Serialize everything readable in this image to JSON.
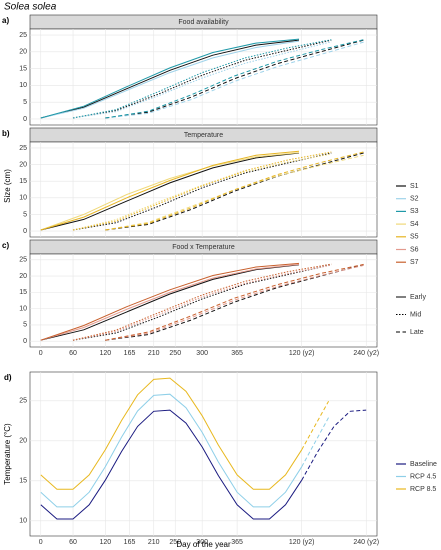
{
  "chart_data": [
    {
      "type": "line",
      "title": "Solea solea",
      "ylabel": "Size (cm)",
      "xlim": [
        -20,
        625
      ],
      "xticks": [
        0,
        60,
        120,
        165,
        210,
        250,
        300,
        365,
        {
          "value": 485,
          "label": "120 (y2)"
        },
        {
          "value": 605,
          "label": "240 (y2)"
        }
      ],
      "ylim": [
        -1.8,
        26.8
      ],
      "yticks": [
        0,
        5,
        10,
        15,
        20,
        25
      ],
      "grid": true,
      "scenarios": [
        {
          "name": "S1",
          "color": "#111111"
        },
        {
          "name": "S2",
          "color": "#9fd3ea"
        },
        {
          "name": "S3",
          "color": "#1f99a8"
        },
        {
          "name": "S4",
          "color": "#f0d97a"
        },
        {
          "name": "S5",
          "color": "#e6b422"
        },
        {
          "name": "S6",
          "color": "#e39a8e"
        },
        {
          "name": "S7",
          "color": "#c8602d"
        }
      ],
      "timings": [
        {
          "name": "Early",
          "dash": "none"
        },
        {
          "name": "Mid",
          "dash": "1.5,1.5"
        },
        {
          "name": "Late",
          "dash": "4,2.5"
        }
      ],
      "panels": [
        {
          "label": "a)",
          "title": "Food availability",
          "series": [
            {
              "scenario": "S1",
              "timing": "Early",
              "x": [
                0,
                80,
                160,
                240,
                320,
                400,
                480
              ],
              "values": [
                0.3,
                3.5,
                9,
                14.5,
                19,
                22,
                23.5
              ]
            },
            {
              "scenario": "S2",
              "timing": "Early",
              "x": [
                0,
                80,
                160,
                240,
                320,
                400,
                480
              ],
              "values": [
                0.3,
                3.2,
                8.5,
                13.8,
                18.2,
                21.3,
                23.2
              ]
            },
            {
              "scenario": "S3",
              "timing": "Early",
              "x": [
                0,
                80,
                160,
                240,
                320,
                400,
                480
              ],
              "values": [
                0.3,
                3.8,
                9.6,
                15.2,
                19.8,
                22.6,
                23.8
              ]
            },
            {
              "scenario": "S1",
              "timing": "Mid",
              "x": [
                60,
                140,
                220,
                300,
                380,
                460,
                540
              ],
              "values": [
                0.3,
                2.5,
                7.5,
                13,
                17.5,
                20.5,
                23.5
              ]
            },
            {
              "scenario": "S2",
              "timing": "Mid",
              "x": [
                60,
                140,
                220,
                300,
                380,
                460,
                540
              ],
              "values": [
                0.3,
                2.2,
                7,
                12.2,
                16.6,
                19.8,
                23
              ]
            },
            {
              "scenario": "S3",
              "timing": "Mid",
              "x": [
                60,
                140,
                220,
                300,
                380,
                460,
                540
              ],
              "values": [
                0.3,
                2.8,
                8.2,
                13.8,
                18.2,
                21.2,
                23.6
              ]
            },
            {
              "scenario": "S1",
              "timing": "Late",
              "x": [
                120,
                200,
                280,
                360,
                440,
                520,
                600
              ],
              "values": [
                0.3,
                2,
                6.5,
                12,
                16.5,
                20,
                23.5
              ]
            },
            {
              "scenario": "S2",
              "timing": "Late",
              "x": [
                120,
                200,
                280,
                360,
                440,
                520,
                600
              ],
              "values": [
                0.3,
                1.7,
                5.8,
                11.2,
                15.6,
                19.2,
                22.9
              ]
            },
            {
              "scenario": "S3",
              "timing": "Late",
              "x": [
                120,
                200,
                280,
                360,
                440,
                520,
                600
              ],
              "values": [
                0.3,
                2.3,
                7.2,
                12.8,
                17.2,
                20.6,
                23.6
              ]
            }
          ]
        },
        {
          "label": "b)",
          "title": "Temperature",
          "series": [
            {
              "scenario": "S1",
              "timing": "Early",
              "x": [
                0,
                80,
                160,
                240,
                320,
                400,
                480
              ],
              "values": [
                0.3,
                3.5,
                9,
                14.5,
                19,
                22,
                23.5
              ]
            },
            {
              "scenario": "S4",
              "timing": "Early",
              "x": [
                0,
                80,
                160,
                240,
                320,
                400,
                480
              ],
              "values": [
                0.3,
                5,
                11,
                15.8,
                19.6,
                22.3,
                23.6
              ]
            },
            {
              "scenario": "S5",
              "timing": "Early",
              "x": [
                0,
                80,
                160,
                240,
                320,
                400,
                480
              ],
              "values": [
                0.3,
                4.2,
                10,
                15.2,
                19.8,
                22.8,
                24
              ]
            },
            {
              "scenario": "S1",
              "timing": "Mid",
              "x": [
                60,
                140,
                220,
                300,
                380,
                460,
                540
              ],
              "values": [
                0.3,
                2.5,
                7.5,
                13,
                17.5,
                20.5,
                23.5
              ]
            },
            {
              "scenario": "S4",
              "timing": "Mid",
              "x": [
                60,
                140,
                220,
                300,
                380,
                460,
                540
              ],
              "values": [
                0.3,
                3.4,
                8.8,
                13.8,
                17.8,
                20.8,
                23.2
              ]
            },
            {
              "scenario": "S5",
              "timing": "Mid",
              "x": [
                60,
                140,
                220,
                300,
                380,
                460,
                540
              ],
              "values": [
                0.3,
                3,
                8.3,
                13.6,
                18.2,
                21.4,
                23.8
              ]
            },
            {
              "scenario": "S1",
              "timing": "Late",
              "x": [
                120,
                200,
                280,
                360,
                440,
                520,
                600
              ],
              "values": [
                0.3,
                2,
                6.5,
                12,
                16.5,
                20,
                23.5
              ]
            },
            {
              "scenario": "S4",
              "timing": "Late",
              "x": [
                120,
                200,
                280,
                360,
                440,
                520,
                600
              ],
              "values": [
                0.3,
                2.6,
                7.4,
                12.4,
                16.6,
                19.8,
                22.8
              ]
            },
            {
              "scenario": "S5",
              "timing": "Late",
              "x": [
                120,
                200,
                280,
                360,
                440,
                520,
                600
              ],
              "values": [
                0.3,
                2.3,
                7,
                12.4,
                17,
                20.6,
                23.8
              ]
            }
          ]
        },
        {
          "label": "c)",
          "title": "Food x Temperature",
          "series": [
            {
              "scenario": "S1",
              "timing": "Early",
              "x": [
                0,
                80,
                160,
                240,
                320,
                400,
                480
              ],
              "values": [
                0.3,
                3.5,
                9,
                14.5,
                19,
                22,
                23.5
              ]
            },
            {
              "scenario": "S6",
              "timing": "Early",
              "x": [
                0,
                80,
                160,
                240,
                320,
                400,
                480
              ],
              "values": [
                0.3,
                4.2,
                9.8,
                15,
                19.4,
                22.2,
                23.6
              ]
            },
            {
              "scenario": "S7",
              "timing": "Early",
              "x": [
                0,
                80,
                160,
                240,
                320,
                400,
                480
              ],
              "values": [
                0.3,
                4.8,
                10.6,
                15.8,
                20.2,
                22.8,
                23.9
              ]
            },
            {
              "scenario": "S1",
              "timing": "Mid",
              "x": [
                60,
                140,
                220,
                300,
                380,
                460,
                540
              ],
              "values": [
                0.3,
                2.5,
                7.5,
                13,
                17.5,
                20.5,
                23.5
              ]
            },
            {
              "scenario": "S6",
              "timing": "Mid",
              "x": [
                60,
                140,
                220,
                300,
                380,
                460,
                540
              ],
              "values": [
                0.3,
                3,
                8.2,
                13.6,
                17.8,
                20.8,
                23.4
              ]
            },
            {
              "scenario": "S7",
              "timing": "Mid",
              "x": [
                60,
                140,
                220,
                300,
                380,
                460,
                540
              ],
              "values": [
                0.3,
                3.4,
                8.8,
                14.2,
                18.4,
                21.4,
                23.7
              ]
            },
            {
              "scenario": "S1",
              "timing": "Late",
              "x": [
                120,
                200,
                280,
                360,
                440,
                520,
                600
              ],
              "values": [
                0.3,
                2,
                6.5,
                12,
                16.5,
                20,
                23.5
              ]
            },
            {
              "scenario": "S6",
              "timing": "Late",
              "x": [
                120,
                200,
                280,
                360,
                440,
                520,
                600
              ],
              "values": [
                0.3,
                2.4,
                7.2,
                12.6,
                16.8,
                20.2,
                23.3
              ]
            },
            {
              "scenario": "S7",
              "timing": "Late",
              "x": [
                120,
                200,
                280,
                360,
                440,
                520,
                600
              ],
              "values": [
                0.3,
                2.8,
                7.8,
                13.2,
                17.4,
                20.8,
                23.6
              ]
            }
          ]
        }
      ]
    },
    {
      "type": "line",
      "label": "d)",
      "xlabel": "Day of the year",
      "ylabel": "Temperature (°C)",
      "xlim": [
        -20,
        625
      ],
      "xticks": [
        0,
        60,
        120,
        165,
        210,
        250,
        300,
        365,
        {
          "value": 485,
          "label": "120 (y2)"
        },
        {
          "value": 605,
          "label": "240 (y2)"
        }
      ],
      "ylim": [
        8.1,
        28.6
      ],
      "yticks": [
        10,
        15,
        20,
        25
      ],
      "grid": true,
      "series": [
        {
          "name": "Baseline",
          "color": "#1a1a80",
          "x": [
            0,
            30,
            60,
            90,
            120,
            150,
            180,
            210,
            240,
            270,
            300,
            330,
            365,
            395,
            425,
            455,
            485
          ],
          "values": [
            12.0,
            10.23,
            10.23,
            12.0,
            15.07,
            18.65,
            21.8,
            23.69,
            23.84,
            22.21,
            19.22,
            15.66,
            12.0,
            10.23,
            10.23,
            12.0,
            15.07
          ],
          "late_x": [
            485,
            515,
            545,
            575,
            605
          ],
          "late_values": [
            15.07,
            18.65,
            21.8,
            23.69,
            23.84
          ]
        },
        {
          "name": "RCP 4.5",
          "color": "#8ecfe8",
          "x": [
            0,
            30,
            60,
            90,
            120,
            150,
            180,
            210,
            240,
            270,
            300,
            330,
            365,
            395,
            425,
            455,
            485
          ],
          "values": [
            13.57,
            11.74,
            11.74,
            13.57,
            16.75,
            20.45,
            23.72,
            25.67,
            25.83,
            24.14,
            21.05,
            17.36,
            13.57,
            11.74,
            11.74,
            13.57,
            16.75
          ],
          "late_x": [
            485,
            515,
            535
          ],
          "late_values": [
            16.75,
            20.45,
            22.91
          ]
        },
        {
          "name": "RCP 8.5",
          "color": "#e8b81f",
          "x": [
            0,
            30,
            60,
            90,
            120,
            150,
            180,
            210,
            240,
            270,
            300,
            330,
            365,
            395,
            425,
            455,
            485
          ],
          "values": [
            15.74,
            13.94,
            13.94,
            15.74,
            18.88,
            22.53,
            25.75,
            27.68,
            27.84,
            26.17,
            23.12,
            19.48,
            15.74,
            13.94,
            13.94,
            15.74,
            18.88
          ],
          "late_x": [
            485,
            515,
            535
          ],
          "late_values": [
            18.88,
            22.53,
            24.95
          ]
        }
      ]
    }
  ]
}
